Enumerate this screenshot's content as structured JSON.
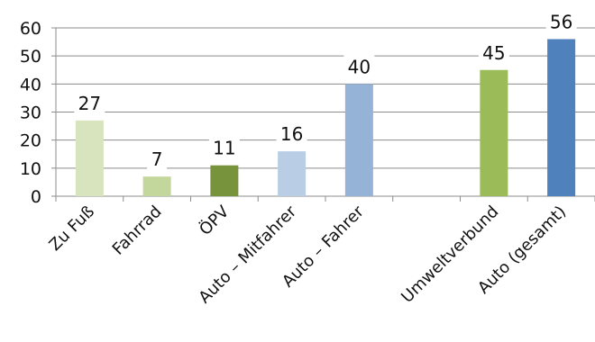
{
  "chart_data": {
    "type": "bar",
    "title": "",
    "xlabel": "",
    "ylabel": "",
    "ylim": [
      0,
      60
    ],
    "yticks": [
      0,
      10,
      20,
      30,
      40,
      50,
      60
    ],
    "grid": true,
    "legend": "none",
    "data_labels": true,
    "categories": [
      "Zu Fuß",
      "Fahrrad",
      "ÖPV",
      "Auto – Mitfahrer",
      "Auto – Fahrer",
      "",
      "Umweltverbund",
      "Auto (gesamt)"
    ],
    "values": [
      27,
      7,
      11,
      16,
      40,
      null,
      45,
      56
    ],
    "colors": [
      "#d7e4bd",
      "#c3d69b",
      "#77933c",
      "#b9cde5",
      "#95b3d7",
      null,
      "#9bbb59",
      "#4f81bd"
    ]
  }
}
